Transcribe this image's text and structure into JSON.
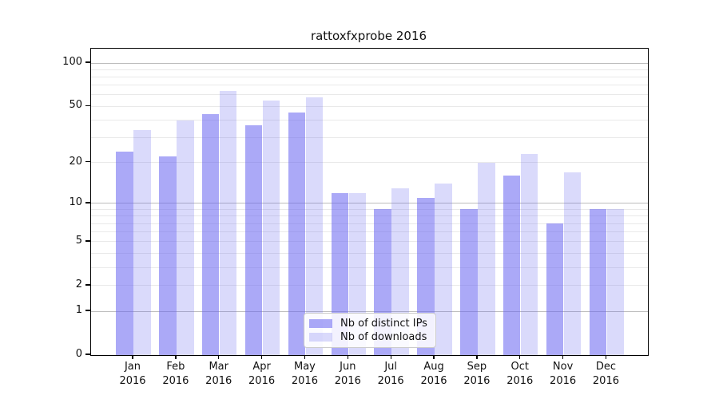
{
  "chart_data": {
    "type": "bar",
    "title": "rattoxfxprobe 2016",
    "categories": [
      "Jan 2016",
      "Feb 2016",
      "Mar 2016",
      "Apr 2016",
      "May 2016",
      "Jun 2016",
      "Jul 2016",
      "Aug 2016",
      "Sep 2016",
      "Oct 2016",
      "Nov 2016",
      "Dec 2016"
    ],
    "series": [
      {
        "name": "Nb of distinct IPs",
        "color": "rgba(102,99,240,0.55)",
        "color_hex": "#aaa9f6",
        "values": [
          24,
          22,
          44,
          37,
          45,
          12,
          9,
          11,
          9,
          16,
          7,
          9
        ]
      },
      {
        "name": "Nb of downloads",
        "color": "rgba(102,99,240,0.24)",
        "color_hex": "#dbdaf8",
        "values": [
          34,
          40,
          64,
          55,
          58,
          12,
          13,
          14,
          20,
          23,
          17,
          9
        ]
      }
    ],
    "xlabel": "",
    "ylabel": "",
    "yscale": "log1p",
    "ylim": [
      0,
      100
    ],
    "ytick_labels": [
      "0",
      "1",
      "2",
      "5",
      "10",
      "20",
      "50",
      "100"
    ],
    "grid": "horizontal",
    "legend_position": "bottom-center",
    "colors": {
      "axis": "#000000",
      "grid_minor": "#e9e9e9",
      "grid_major": "#bdbdbd"
    }
  }
}
